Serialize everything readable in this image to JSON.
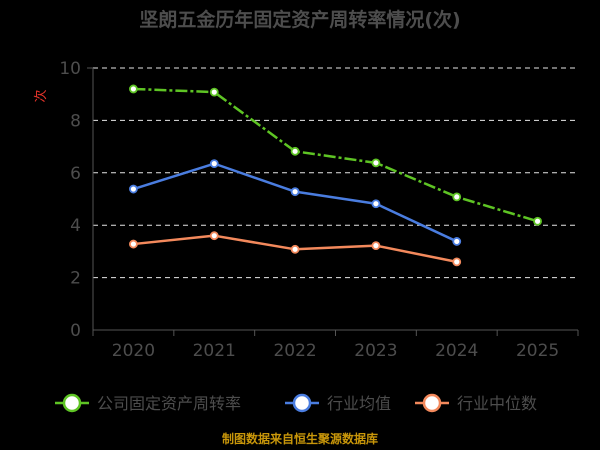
{
  "chart_data": {
    "type": "line",
    "title": "坚朗五金历年固定资产周转率情况(次)",
    "ylabel": "次",
    "categories": [
      "2020",
      "2021",
      "2022",
      "2023",
      "2024",
      "2025"
    ],
    "yticks": [
      "0",
      "2",
      "4",
      "6",
      "8",
      "10"
    ],
    "ylim": [
      0,
      10
    ],
    "grid": true,
    "legend_position": "bottom",
    "series": [
      {
        "name": "公司固定资产周转率",
        "color": "#5ec424",
        "dashed": true,
        "values": [
          9.2,
          9.08,
          6.82,
          6.38,
          5.08,
          4.15
        ]
      },
      {
        "name": "行业均值",
        "color": "#4a7de0",
        "dashed": false,
        "values": [
          5.38,
          6.35,
          5.28,
          4.82,
          3.38,
          null
        ]
      },
      {
        "name": "行业中位数",
        "color": "#f3895c",
        "dashed": false,
        "values": [
          3.28,
          3.6,
          3.08,
          3.22,
          2.6,
          null
        ]
      }
    ]
  },
  "footer": {
    "source": "制图数据来自恒生聚源数据库"
  }
}
